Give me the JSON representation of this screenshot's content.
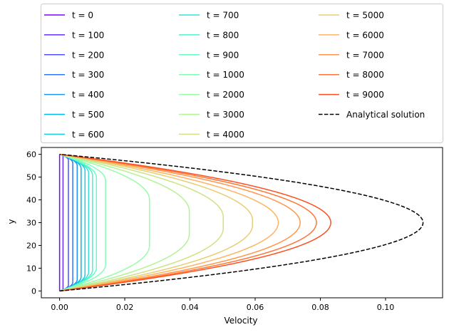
{
  "chart_data": {
    "type": "line",
    "title": "",
    "xlabel": "Velocity",
    "ylabel": "y",
    "xlim": [
      -0.0056,
      0.1175
    ],
    "ylim": [
      -3,
      63
    ],
    "xticks": [
      0.0,
      0.02,
      0.04,
      0.06,
      0.08,
      0.1
    ],
    "xtick_labels": [
      "0.00",
      "0.02",
      "0.04",
      "0.06",
      "0.08",
      "0.10"
    ],
    "yticks": [
      0,
      10,
      20,
      30,
      40,
      50,
      60
    ],
    "ytick_labels": [
      "0",
      "10",
      "20",
      "30",
      "40",
      "50",
      "60"
    ],
    "grid": false,
    "legend_position": "top (above plot), 3 columns",
    "channel_height": 60,
    "series": [
      {
        "name": "t = 0",
        "color": "#8000ff",
        "peak_velocity": 0.0,
        "wall_thickness": 1.0
      },
      {
        "name": "t = 100",
        "color": "#6629fe",
        "peak_velocity": 0.00105,
        "wall_thickness": 0.9
      },
      {
        "name": "t = 200",
        "color": "#4c50fc",
        "peak_velocity": 0.0027,
        "wall_thickness": 2.5
      },
      {
        "name": "t = 300",
        "color": "#3176f8",
        "peak_velocity": 0.00405,
        "wall_thickness": 3.8
      },
      {
        "name": "t = 400",
        "color": "#1996f3",
        "peak_velocity": 0.0054,
        "wall_thickness": 5.0
      },
      {
        "name": "t = 500",
        "color": "#00b5eb",
        "peak_velocity": 0.0066,
        "wall_thickness": 6.2
      },
      {
        "name": "t = 600",
        "color": "#19cee3",
        "peak_velocity": 0.0078,
        "wall_thickness": 7.2
      },
      {
        "name": "t = 700",
        "color": "#32e2d9",
        "peak_velocity": 0.0089,
        "wall_thickness": 8.3
      },
      {
        "name": "t = 800",
        "color": "#4cf2ce",
        "peak_velocity": 0.0101,
        "wall_thickness": 9.3
      },
      {
        "name": "t = 900",
        "color": "#66fcc1",
        "peak_velocity": 0.0113,
        "wall_thickness": 10.2
      },
      {
        "name": "t = 1000",
        "color": "#80ffb4",
        "peak_velocity": 0.0141,
        "wall_thickness": 11.5
      },
      {
        "name": "t = 2000",
        "color": "#9afca6",
        "peak_velocity": 0.0276,
        "wall_thickness": 20.0
      },
      {
        "name": "t = 3000",
        "color": "#b4f296",
        "peak_velocity": 0.0398,
        "wall_thickness": 25.0
      },
      {
        "name": "t = 4000",
        "color": "#cde285",
        "peak_velocity": 0.0502,
        "wall_thickness": 27.5
      },
      {
        "name": "t = 5000",
        "color": "#e6ce73",
        "peak_velocity": 0.0592,
        "wall_thickness": 29.0
      },
      {
        "name": "t = 6000",
        "color": "#ffb360",
        "peak_velocity": 0.0671,
        "wall_thickness": 30.0
      },
      {
        "name": "t = 7000",
        "color": "#ff964b",
        "peak_velocity": 0.0738,
        "wall_thickness": 30.0
      },
      {
        "name": "t = 8000",
        "color": "#ff7535",
        "peak_velocity": 0.0788,
        "wall_thickness": 30.0
      },
      {
        "name": "t = 9000",
        "color": "#ff4f1e",
        "peak_velocity": 0.0832,
        "wall_thickness": 30.0
      },
      {
        "name": "Analytical solution",
        "color": "#000000",
        "peak_velocity": 0.1115,
        "dashed": true,
        "wall_thickness": 30.0
      }
    ]
  }
}
